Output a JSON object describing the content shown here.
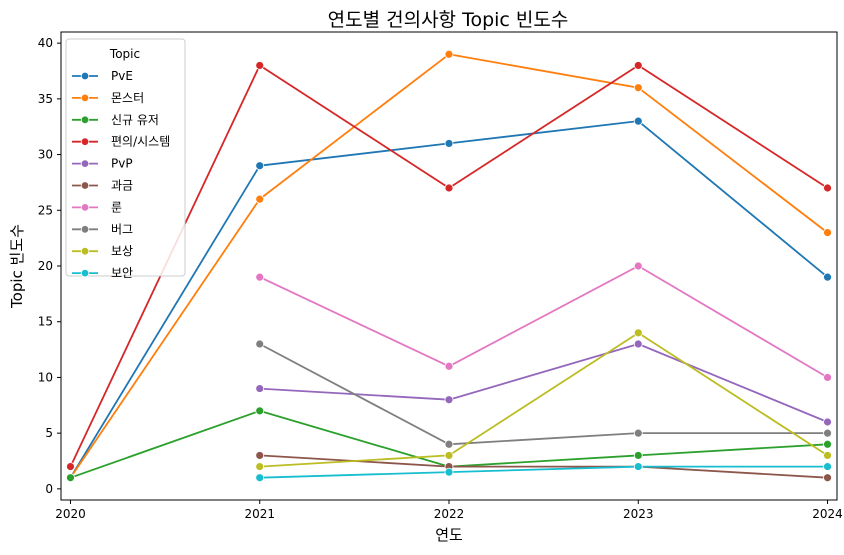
{
  "chart_data": {
    "type": "line",
    "title": "연도별 건의사항 Topic 빈도수",
    "xlabel": "연도",
    "ylabel": "Topic 빈도수",
    "x": [
      2020,
      2021,
      2022,
      2023,
      2024
    ],
    "xlim": [
      2019.95,
      2024.05
    ],
    "ylim": [
      -1,
      41
    ],
    "yticks": [
      0,
      5,
      10,
      15,
      20,
      25,
      30,
      35,
      40
    ],
    "grid": false,
    "legend": {
      "title": "Topic",
      "placement": "top-left"
    },
    "series": [
      {
        "name": "PvE",
        "color": "#1f77b4",
        "x": [
          2020,
          2021,
          2022,
          2023,
          2024
        ],
        "values": [
          1,
          29,
          31,
          33,
          19
        ]
      },
      {
        "name": "몬스터",
        "color": "#ff7f0e",
        "x": [
          2020,
          2021,
          2022,
          2023,
          2024
        ],
        "values": [
          1,
          26,
          39,
          36,
          23
        ]
      },
      {
        "name": "신규 유저",
        "color": "#2ca02c",
        "x": [
          2020,
          2021,
          2022,
          2023,
          2024
        ],
        "values": [
          1,
          7,
          2,
          3,
          4
        ]
      },
      {
        "name": "편의/시스템",
        "color": "#d62728",
        "x": [
          2020,
          2021,
          2022,
          2023,
          2024
        ],
        "values": [
          2,
          38,
          27,
          38,
          27
        ]
      },
      {
        "name": "PvP",
        "color": "#9467bd",
        "x": [
          2021,
          2022,
          2023,
          2024
        ],
        "values": [
          9,
          8,
          13,
          6
        ]
      },
      {
        "name": "과금",
        "color": "#8c564b",
        "x": [
          2021,
          2022,
          2023,
          2024
        ],
        "values": [
          3,
          2,
          2,
          1
        ]
      },
      {
        "name": "룬",
        "color": "#e377c2",
        "x": [
          2021,
          2022,
          2023,
          2024
        ],
        "values": [
          19,
          11,
          20,
          10
        ]
      },
      {
        "name": "버그",
        "color": "#7f7f7f",
        "x": [
          2021,
          2022,
          2023,
          2024
        ],
        "values": [
          13,
          4,
          5,
          5
        ]
      },
      {
        "name": "보상",
        "color": "#bcbd22",
        "x": [
          2021,
          2022,
          2023,
          2024
        ],
        "values": [
          2,
          3,
          14,
          3
        ]
      },
      {
        "name": "보안",
        "color": "#17becf",
        "x": [
          2021,
          2022,
          2023,
          2024
        ],
        "values": [
          1,
          1.5,
          2,
          2
        ]
      }
    ]
  }
}
